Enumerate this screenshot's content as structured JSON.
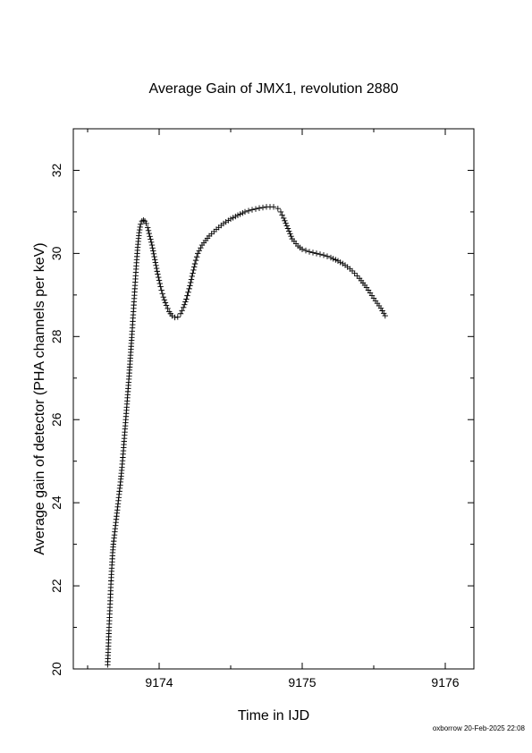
{
  "chart_data": {
    "type": "scatter",
    "title": "Average Gain of JMX1, revolution 2880",
    "xlabel": "Time in IJD",
    "ylabel": "Average gain of detector (PHA channels per keV)",
    "xlim": [
      9173.4,
      9176.2
    ],
    "ylim": [
      20,
      33
    ],
    "xticks": [
      9174,
      9175,
      9176
    ],
    "yticks": [
      20,
      22,
      24,
      26,
      28,
      30,
      32
    ],
    "grid": false,
    "marker": "plus",
    "series": [
      {
        "points": [
          [
            9173.64,
            20.1
          ],
          [
            9173.645,
            20.55
          ],
          [
            9173.65,
            21.0
          ],
          [
            9173.655,
            21.4
          ],
          [
            9173.66,
            21.8
          ],
          [
            9173.665,
            22.2
          ],
          [
            9173.67,
            22.5
          ],
          [
            9173.675,
            22.8
          ],
          [
            9173.68,
            23.0
          ],
          [
            9173.69,
            23.3
          ],
          [
            9173.7,
            23.6
          ],
          [
            9173.71,
            23.9
          ],
          [
            9173.72,
            24.2
          ],
          [
            9173.73,
            24.5
          ],
          [
            9173.74,
            24.85
          ],
          [
            9173.75,
            25.25
          ],
          [
            9173.76,
            25.7
          ],
          [
            9173.77,
            26.15
          ],
          [
            9173.78,
            26.6
          ],
          [
            9173.79,
            27.05
          ],
          [
            9173.8,
            27.55
          ],
          [
            9173.81,
            28.05
          ],
          [
            9173.82,
            28.6
          ],
          [
            9173.83,
            29.15
          ],
          [
            9173.84,
            29.7
          ],
          [
            9173.85,
            30.15
          ],
          [
            9173.86,
            30.5
          ],
          [
            9173.87,
            30.7
          ],
          [
            9173.88,
            30.78
          ],
          [
            9173.89,
            30.8
          ],
          [
            9173.9,
            30.78
          ],
          [
            9173.91,
            30.72
          ],
          [
            9173.92,
            30.62
          ],
          [
            9173.93,
            30.48
          ],
          [
            9173.95,
            30.2
          ],
          [
            9173.97,
            29.85
          ],
          [
            9173.99,
            29.5
          ],
          [
            9174.01,
            29.2
          ],
          [
            9174.03,
            28.95
          ],
          [
            9174.05,
            28.75
          ],
          [
            9174.07,
            28.6
          ],
          [
            9174.09,
            28.5
          ],
          [
            9174.11,
            28.46
          ],
          [
            9174.13,
            28.47
          ],
          [
            9174.15,
            28.55
          ],
          [
            9174.17,
            28.7
          ],
          [
            9174.19,
            28.9
          ],
          [
            9174.21,
            29.15
          ],
          [
            9174.23,
            29.45
          ],
          [
            9174.25,
            29.75
          ],
          [
            9174.27,
            30.0
          ],
          [
            9174.3,
            30.2
          ],
          [
            9174.35,
            30.42
          ],
          [
            9174.4,
            30.58
          ],
          [
            9174.45,
            30.72
          ],
          [
            9174.5,
            30.83
          ],
          [
            9174.55,
            30.92
          ],
          [
            9174.6,
            31.0
          ],
          [
            9174.65,
            31.05
          ],
          [
            9174.7,
            31.09
          ],
          [
            9174.75,
            31.12
          ],
          [
            9174.8,
            31.12
          ],
          [
            9174.83,
            31.08
          ],
          [
            9174.85,
            31.0
          ],
          [
            9174.87,
            30.85
          ],
          [
            9174.9,
            30.6
          ],
          [
            9174.93,
            30.35
          ],
          [
            9174.97,
            30.18
          ],
          [
            9175.0,
            30.1
          ],
          [
            9175.05,
            30.04
          ],
          [
            9175.1,
            30.0
          ],
          [
            9175.15,
            29.96
          ],
          [
            9175.2,
            29.9
          ],
          [
            9175.25,
            29.82
          ],
          [
            9175.3,
            29.72
          ],
          [
            9175.35,
            29.58
          ],
          [
            9175.4,
            29.4
          ],
          [
            9175.45,
            29.18
          ],
          [
            9175.5,
            28.92
          ],
          [
            9175.55,
            28.68
          ],
          [
            9175.58,
            28.5
          ]
        ]
      }
    ]
  },
  "footer": "oxborrow 20-Feb-2025 22:08"
}
